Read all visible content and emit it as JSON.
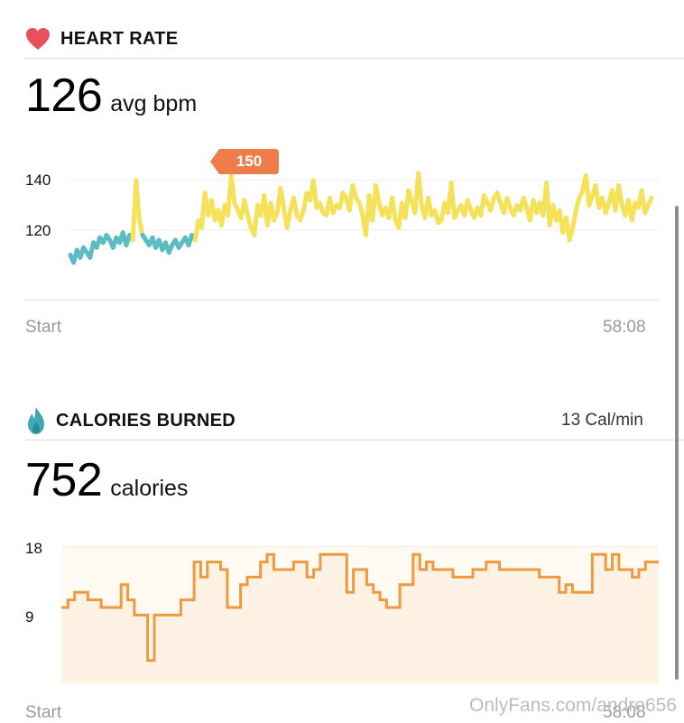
{
  "heart_rate": {
    "title": "HEART RATE",
    "icon": "heart-icon",
    "icon_color": "#e8505b",
    "value": "126",
    "unit": "avg bpm",
    "peak_badge": "150",
    "y_ticks": [
      "140",
      "120"
    ],
    "start_label": "Start",
    "end_label": "58:08"
  },
  "calories": {
    "title": "CALORIES BURNED",
    "icon": "flame-icon",
    "icon_color": "#3fa7b5",
    "rate": "13 Cal/min",
    "value": "752",
    "unit": "calories",
    "y_ticks": [
      "18",
      "9"
    ],
    "start_label": "Start",
    "end_label": "58:08"
  },
  "watermark": "OnlyFans.com/andre656",
  "colors": {
    "hr_high": "#f08a4b",
    "hr_mid": "#f5e25a",
    "hr_low": "#5bbcc4",
    "calorie_line": "#ef9a3f",
    "calorie_fill": "#fdf2e3",
    "badge": "#ef7d4a"
  },
  "chart_data": [
    {
      "type": "line",
      "ylim": [
        100,
        160
      ],
      "yticks": [
        120,
        140
      ],
      "x_range": [
        "Start",
        "58:08"
      ],
      "zones": {
        "low_below": 118,
        "high_above": 142
      },
      "series": [
        {
          "values": [
            110,
            107,
            112,
            109,
            113,
            111,
            109,
            115,
            113,
            117,
            115,
            118,
            116,
            113,
            117,
            115,
            119,
            114,
            118,
            116,
            140,
            124,
            118,
            116,
            114,
            117,
            113,
            116,
            112,
            115,
            111,
            114,
            116,
            113,
            115,
            117,
            114,
            118,
            116,
            124,
            121,
            135,
            126,
            132,
            124,
            128,
            122,
            130,
            126,
            142,
            131,
            128,
            125,
            132,
            126,
            121,
            118,
            130,
            126,
            134,
            122,
            131,
            124,
            127,
            137,
            129,
            121,
            128,
            133,
            126,
            124,
            128,
            135,
            132,
            140,
            129,
            131,
            127,
            126,
            133,
            127,
            130,
            129,
            135,
            133,
            128,
            138,
            133,
            131,
            126,
            118,
            134,
            124,
            138,
            131,
            126,
            129,
            125,
            133,
            124,
            121,
            131,
            125,
            136,
            131,
            127,
            143,
            130,
            125,
            133,
            126,
            128,
            123,
            124,
            131,
            127,
            139,
            125,
            128,
            130,
            126,
            132,
            128,
            125,
            129,
            126,
            134,
            131,
            128,
            133,
            135,
            131,
            127,
            133,
            129,
            126,
            130,
            128,
            133,
            129,
            124,
            132,
            127,
            131,
            126,
            139,
            122,
            130,
            124,
            128,
            119,
            125,
            116,
            121,
            128,
            133,
            136,
            142,
            130,
            134,
            138,
            129,
            133,
            127,
            131,
            136,
            128,
            138,
            130,
            126,
            132,
            124,
            131,
            129,
            136,
            127,
            130,
            133
          ]
        }
      ]
    },
    {
      "type": "area",
      "ylim": [
        0,
        20
      ],
      "yticks": [
        9,
        18
      ],
      "x_range": [
        "Start",
        "58:08"
      ],
      "series": [
        {
          "values": [
            10,
            11,
            12,
            12,
            11,
            11,
            10,
            10,
            10,
            13,
            11,
            9,
            9,
            3,
            9,
            9,
            9,
            9,
            11,
            11,
            16,
            14,
            16,
            16,
            15,
            10,
            10,
            13,
            14,
            14,
            16,
            17,
            15,
            15,
            15,
            16,
            16,
            14,
            15,
            17,
            17,
            17,
            17,
            12,
            15,
            15,
            13,
            12,
            11,
            10,
            10,
            13,
            13,
            17,
            15,
            16,
            15,
            15,
            15,
            14,
            14,
            14,
            15,
            15,
            16,
            16,
            15,
            15,
            15,
            15,
            15,
            15,
            14,
            14,
            14,
            12,
            13,
            12,
            12,
            12,
            17,
            17,
            15,
            17,
            15,
            15,
            14,
            15,
            16,
            16
          ]
        }
      ]
    }
  ]
}
